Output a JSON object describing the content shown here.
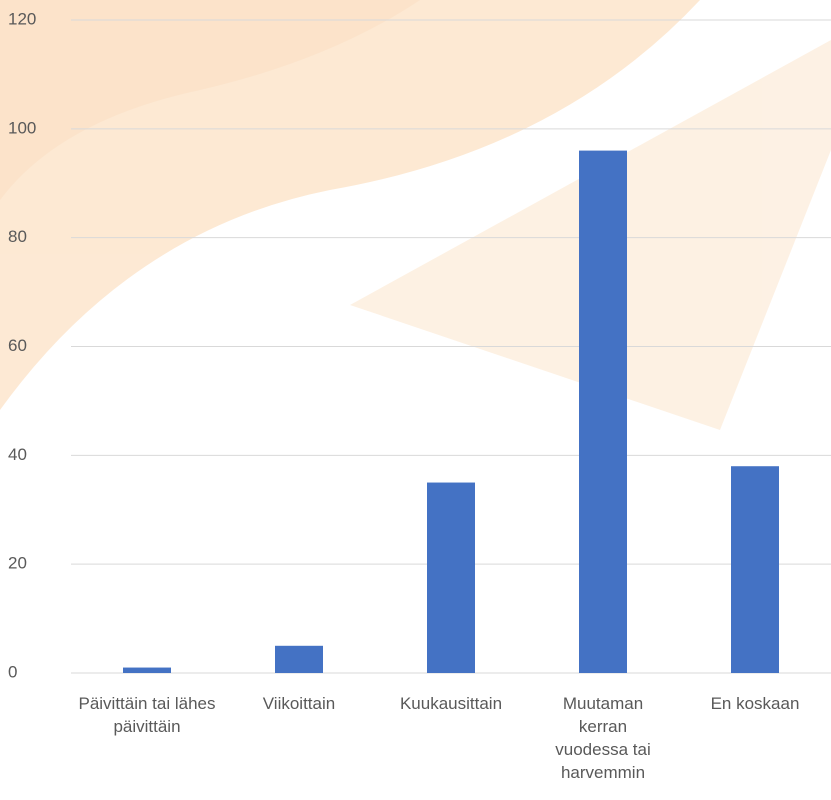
{
  "chart_data": {
    "type": "bar",
    "categories": [
      "Päivittäin tai lähes päivittäin",
      "Viikoittain",
      "Kuukausittain",
      "Muutaman kerran vuodessa tai harvemmin",
      "En koskaan"
    ],
    "values": [
      1,
      5,
      35,
      96,
      38
    ],
    "color": "#4472c4",
    "ylim": [
      0,
      120
    ],
    "yticks": [
      0,
      20,
      40,
      60,
      80,
      100,
      120
    ],
    "grid": true
  }
}
